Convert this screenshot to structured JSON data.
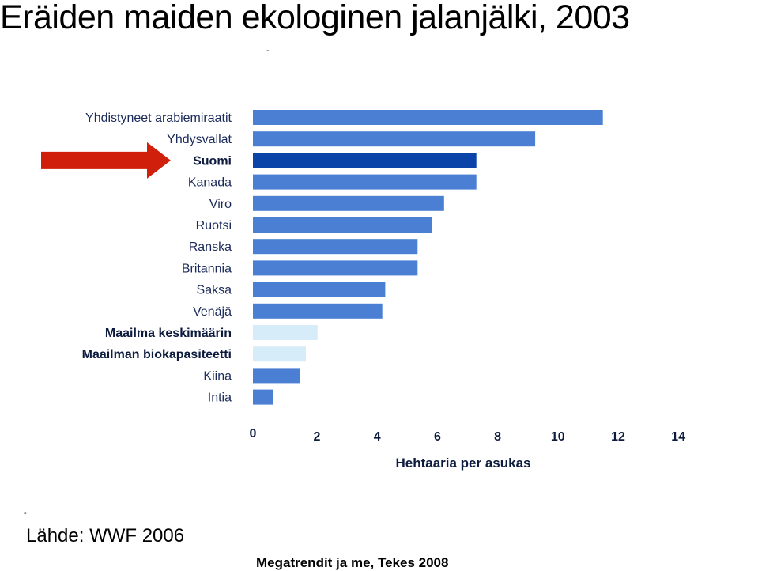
{
  "title": "Eräiden maiden ekologinen jalanjälki, 2003",
  "source": "Lähde: WWF 2006",
  "footer": "Megatrendit ja me, Tekes 2008",
  "chart_data": {
    "type": "bar",
    "orientation": "horizontal",
    "categories": [
      "Yhdistyneet arabiemiraatit",
      "Yhdysvallat",
      "Suomi",
      "Kanada",
      "Viro",
      "Ruotsi",
      "Ranska",
      "Britannia",
      "Saksa",
      "Venäjä",
      "Maailma keskimäärin",
      "Maailman biokapasiteetti",
      "Kiina",
      "Intia"
    ],
    "values": [
      11.9,
      9.6,
      7.6,
      7.6,
      6.5,
      6.1,
      5.6,
      5.6,
      4.5,
      4.4,
      2.2,
      1.8,
      1.6,
      0.7
    ],
    "bold_categories": [
      "Suomi",
      "Maailma keskimäärin",
      "Maailman biokapasiteetti"
    ],
    "colors": {
      "default": "#4a7fd4",
      "highlight": "#0a44a8",
      "world": "#d6ecf8",
      "arrow": "#d0200b"
    },
    "bar_colors": [
      "default",
      "default",
      "highlight",
      "default",
      "default",
      "default",
      "default",
      "default",
      "default",
      "default",
      "world",
      "world",
      "default",
      "default"
    ],
    "highlight_arrow_category": "Suomi",
    "xlabel": "Hehtaaria per asukas",
    "xticks": [
      0,
      2,
      4,
      6,
      8,
      10,
      12,
      14
    ],
    "xlim": [
      0,
      14
    ],
    "grid": false
  }
}
